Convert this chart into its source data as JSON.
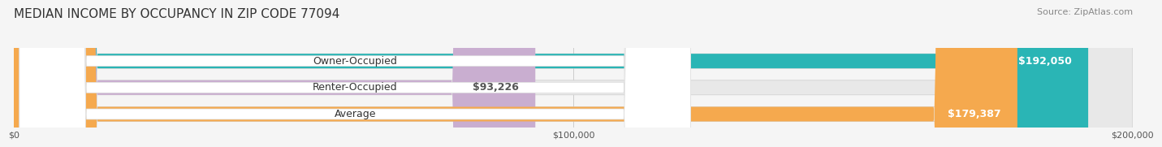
{
  "title": "MEDIAN INCOME BY OCCUPANCY IN ZIP CODE 77094",
  "source": "Source: ZipAtlas.com",
  "categories": [
    "Owner-Occupied",
    "Renter-Occupied",
    "Average"
  ],
  "values": [
    192050,
    93226,
    179387
  ],
  "bar_colors": [
    "#2ab5b5",
    "#c9aed0",
    "#f5a94e"
  ],
  "label_colors": [
    "#ffffff",
    "#555555",
    "#ffffff"
  ],
  "value_labels": [
    "$192,050",
    "$93,226",
    "$179,387"
  ],
  "xmax": 200000,
  "xticks": [
    0,
    100000,
    200000
  ],
  "xtick_labels": [
    "$0",
    "$100,000",
    "$200,000"
  ],
  "background_color": "#f5f5f5",
  "bar_bg_color": "#e8e8e8",
  "title_fontsize": 11,
  "source_fontsize": 8,
  "label_fontsize": 9,
  "value_fontsize": 9
}
